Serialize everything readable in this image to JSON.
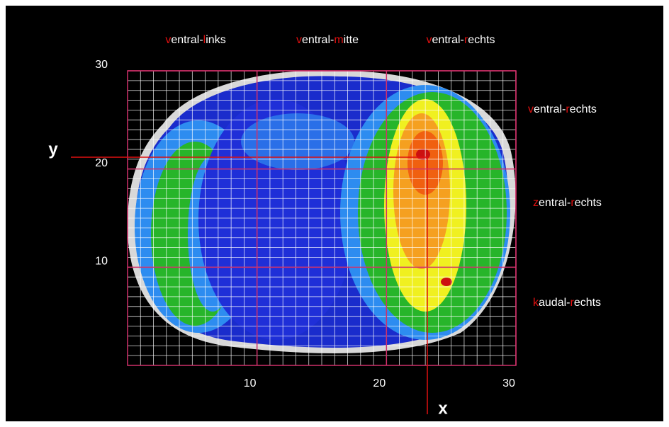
{
  "top_labels": [
    {
      "parts": [
        "v",
        "entral-",
        "l",
        "inks"
      ]
    },
    {
      "parts": [
        "v",
        "entral-",
        "m",
        "itte"
      ]
    },
    {
      "parts": [
        "v",
        "entral-",
        "r",
        "echts"
      ]
    }
  ],
  "side_labels": [
    {
      "parts": [
        "v",
        "entral-",
        "r",
        "echts"
      ]
    },
    {
      "parts": [
        "z",
        "entral-",
        "r",
        "echts"
      ]
    },
    {
      "parts": [
        "k",
        "audal-",
        "r",
        "echts"
      ]
    }
  ],
  "axes": {
    "x_label": "x",
    "y_label": "y",
    "xlim": [
      0,
      30
    ],
    "ylim": [
      0,
      30
    ],
    "xticks": [
      10,
      20,
      30
    ],
    "yticks": [
      10,
      20,
      30
    ]
  }
}
